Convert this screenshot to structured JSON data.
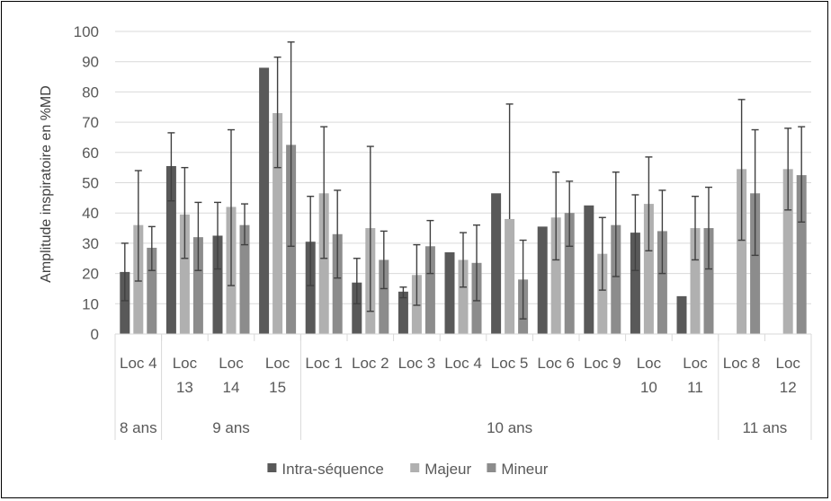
{
  "chart_data": {
    "type": "bar",
    "title": "",
    "ylabel": "Amplitude inspiratoire en %MD",
    "xlabel": "",
    "ylim": [
      0,
      100
    ],
    "yticks": [
      0,
      10,
      20,
      30,
      40,
      50,
      60,
      70,
      80,
      90,
      100
    ],
    "grid": true,
    "legend_position": "bottom",
    "categories": [
      "Loc 4",
      "Loc 13",
      "Loc 14",
      "Loc 15",
      "Loc 1",
      "Loc 2",
      "Loc 3",
      "Loc 4",
      "Loc 5",
      "Loc 6",
      "Loc 9",
      "Loc 10",
      "Loc 11",
      "Loc 8",
      "Loc 12"
    ],
    "category_label_lines": [
      [
        "Loc 4"
      ],
      [
        "Loc",
        "13"
      ],
      [
        "Loc",
        "14"
      ],
      [
        "Loc",
        "15"
      ],
      [
        "Loc 1"
      ],
      [
        "Loc 2"
      ],
      [
        "Loc 3"
      ],
      [
        "Loc 4"
      ],
      [
        "Loc 5"
      ],
      [
        "Loc 6"
      ],
      [
        "Loc 9"
      ],
      [
        "Loc",
        "10"
      ],
      [
        "Loc",
        "11"
      ],
      [
        "Loc 8"
      ],
      [
        "Loc",
        "12"
      ]
    ],
    "groups": [
      {
        "label": "8 ans",
        "count": 1
      },
      {
        "label": "9 ans",
        "count": 3
      },
      {
        "label": "10 ans",
        "count": 9
      },
      {
        "label": "11 ans",
        "count": 2
      }
    ],
    "series": [
      {
        "name": "Intra-séquence",
        "color": "#595959",
        "values": [
          20.5,
          55.5,
          32.5,
          88,
          30.5,
          17,
          14,
          27,
          46.5,
          35.5,
          42.5,
          33.5,
          12.5,
          null,
          null
        ],
        "error_low": [
          11,
          44,
          21.5,
          88,
          16,
          10,
          12,
          27,
          46.5,
          35.5,
          42.5,
          21,
          12.5,
          null,
          null
        ],
        "error_high": [
          30,
          66.5,
          43.5,
          88,
          45.5,
          25,
          15.5,
          27,
          46.5,
          35.5,
          42.5,
          46,
          12.5,
          null,
          null
        ]
      },
      {
        "name": "Majeur",
        "color": "#b0b0b0",
        "values": [
          36,
          39.5,
          42,
          73,
          46.5,
          35,
          19.5,
          24.5,
          38,
          38.5,
          26.5,
          43,
          35,
          54.5,
          54.5
        ],
        "error_low": [
          17.5,
          25,
          16,
          55,
          25,
          7.5,
          9.5,
          15.5,
          null,
          24.5,
          14.5,
          27.5,
          24.5,
          31,
          41
        ],
        "error_high": [
          54,
          55,
          67.5,
          91.5,
          68.5,
          62,
          29.5,
          33.5,
          76,
          53.5,
          38.5,
          58.5,
          45.5,
          77.5,
          68
        ]
      },
      {
        "name": "Mineur",
        "color": "#8c8c8c",
        "values": [
          28.5,
          32,
          36,
          62.5,
          33,
          24.5,
          29,
          23.5,
          18,
          40,
          36,
          34,
          35,
          46.5,
          52.5
        ],
        "error_low": [
          21,
          21,
          29.5,
          29,
          18.5,
          15,
          20,
          11,
          5,
          29,
          19,
          20,
          21.5,
          26,
          37
        ],
        "error_high": [
          35.5,
          43.5,
          43,
          96.5,
          47.5,
          34,
          37.5,
          36,
          31,
          50.5,
          53.5,
          47.5,
          48.5,
          67.5,
          68.5
        ]
      }
    ]
  }
}
